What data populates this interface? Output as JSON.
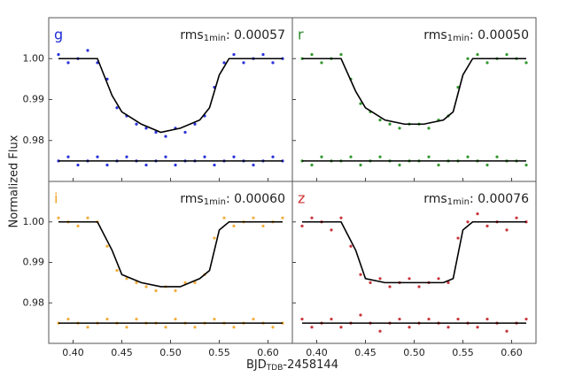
{
  "figure": {
    "ylabel": "Normalized Flux",
    "xlabel": "BJD",
    "xlabel_sub": "TDB",
    "xlabel_rest": "-2458144"
  },
  "chart_data": [
    {
      "type": "scatter",
      "band": "g",
      "band_color": "#1c2bd6",
      "rms_label": "rms",
      "rms_sub": "1min",
      "rms_text": ": 0.00057",
      "show_xtick_labels": false,
      "show_ytick_labels": true,
      "xlim": [
        0.375,
        0.625
      ],
      "ylim": [
        0.97,
        1.01
      ],
      "xticks": [
        {
          "value": 0.4,
          "label": "0.40"
        },
        {
          "value": 0.45,
          "label": "0.45"
        },
        {
          "value": 0.5,
          "label": "0.50"
        },
        {
          "value": 0.55,
          "label": "0.55"
        },
        {
          "value": 0.6,
          "label": "0.60"
        }
      ],
      "yticks": [
        {
          "value": 0.98,
          "label": "0.98"
        },
        {
          "value": 0.99,
          "label": "0.99"
        },
        {
          "value": 1.0,
          "label": "1.00"
        }
      ],
      "x": [
        0.385,
        0.395,
        0.405,
        0.415,
        0.425,
        0.435,
        0.445,
        0.455,
        0.465,
        0.475,
        0.485,
        0.495,
        0.505,
        0.515,
        0.525,
        0.535,
        0.545,
        0.555,
        0.565,
        0.575,
        0.585,
        0.595,
        0.605,
        0.615
      ],
      "series": [
        {
          "color": "#2a32d8",
          "values": [
            1.001,
            0.999,
            1.0,
            1.002,
            0.999,
            0.995,
            0.988,
            0.986,
            0.984,
            0.983,
            0.982,
            0.981,
            0.983,
            0.982,
            0.984,
            0.986,
            0.993,
            0.999,
            1.001,
            0.999,
            1.0,
            1.001,
            0.999,
            1.0
          ]
        },
        {
          "color": "#2a32d8",
          "values": [
            0.975,
            0.976,
            0.974,
            0.975,
            0.976,
            0.974,
            0.975,
            0.976,
            0.975,
            0.974,
            0.975,
            0.976,
            0.974,
            0.975,
            0.975,
            0.976,
            0.974,
            0.975,
            0.976,
            0.975,
            0.974,
            0.975,
            0.976,
            0.975
          ]
        }
      ],
      "model": {
        "color": "#000000",
        "x": [
          0.385,
          0.425,
          0.44,
          0.45,
          0.47,
          0.49,
          0.51,
          0.53,
          0.54,
          0.55,
          0.56,
          0.615
        ],
        "values": [
          1.0,
          1.0,
          0.991,
          0.987,
          0.984,
          0.982,
          0.983,
          0.985,
          0.988,
          0.996,
          1.0,
          1.0
        ]
      },
      "residual_model": {
        "color": "#000000",
        "x": [
          0.385,
          0.615
        ],
        "values": [
          0.975,
          0.975
        ]
      }
    },
    {
      "type": "scatter",
      "band": "r",
      "band_color": "#2a8a2a",
      "rms_label": "rms",
      "rms_sub": "1min",
      "rms_text": ": 0.00050",
      "show_xtick_labels": false,
      "show_ytick_labels": false,
      "xlim": [
        0.375,
        0.625
      ],
      "ylim": [
        0.97,
        1.01
      ],
      "xticks": [
        {
          "value": 0.4,
          "label": "0.40"
        },
        {
          "value": 0.45,
          "label": "0.45"
        },
        {
          "value": 0.5,
          "label": "0.50"
        },
        {
          "value": 0.55,
          "label": "0.55"
        },
        {
          "value": 0.6,
          "label": "0.60"
        }
      ],
      "yticks": [
        {
          "value": 0.98,
          "label": "0.98"
        },
        {
          "value": 0.99,
          "label": "0.99"
        },
        {
          "value": 1.0,
          "label": "1.00"
        }
      ],
      "x": [
        0.385,
        0.395,
        0.405,
        0.415,
        0.425,
        0.435,
        0.445,
        0.455,
        0.465,
        0.475,
        0.485,
        0.495,
        0.505,
        0.515,
        0.525,
        0.535,
        0.545,
        0.555,
        0.565,
        0.575,
        0.585,
        0.595,
        0.605,
        0.615
      ],
      "series": [
        {
          "color": "#33992f",
          "values": [
            1.0,
            1.001,
            0.999,
            1.0,
            1.001,
            0.995,
            0.989,
            0.987,
            0.985,
            0.984,
            0.983,
            0.984,
            0.984,
            0.983,
            0.985,
            0.986,
            0.993,
            1.0,
            1.001,
            0.999,
            1.0,
            1.001,
            1.0,
            0.999
          ]
        },
        {
          "color": "#33992f",
          "values": [
            0.975,
            0.974,
            0.976,
            0.975,
            0.975,
            0.976,
            0.974,
            0.975,
            0.976,
            0.975,
            0.974,
            0.975,
            0.975,
            0.976,
            0.974,
            0.975,
            0.975,
            0.976,
            0.975,
            0.974,
            0.976,
            0.975,
            0.975,
            0.974
          ]
        }
      ],
      "model": {
        "color": "#000000",
        "x": [
          0.385,
          0.425,
          0.44,
          0.45,
          0.47,
          0.49,
          0.51,
          0.53,
          0.54,
          0.55,
          0.56,
          0.615
        ],
        "values": [
          1.0,
          1.0,
          0.992,
          0.988,
          0.985,
          0.984,
          0.984,
          0.985,
          0.987,
          0.996,
          1.0,
          1.0
        ]
      },
      "residual_model": {
        "color": "#000000",
        "x": [
          0.385,
          0.615
        ],
        "values": [
          0.975,
          0.975
        ]
      }
    },
    {
      "type": "scatter",
      "band": "i",
      "band_color": "#f0a020",
      "rms_label": "rms",
      "rms_sub": "1min",
      "rms_text": ": 0.00060",
      "show_xtick_labels": true,
      "show_ytick_labels": true,
      "xlim": [
        0.375,
        0.625
      ],
      "ylim": [
        0.97,
        1.01
      ],
      "xticks": [
        {
          "value": 0.4,
          "label": "0.40"
        },
        {
          "value": 0.45,
          "label": "0.45"
        },
        {
          "value": 0.5,
          "label": "0.50"
        },
        {
          "value": 0.55,
          "label": "0.55"
        },
        {
          "value": 0.6,
          "label": "0.60"
        }
      ],
      "yticks": [
        {
          "value": 0.98,
          "label": "0.98"
        },
        {
          "value": 0.99,
          "label": "0.99"
        },
        {
          "value": 1.0,
          "label": "1.00"
        }
      ],
      "x": [
        0.385,
        0.395,
        0.405,
        0.415,
        0.425,
        0.435,
        0.445,
        0.455,
        0.465,
        0.475,
        0.485,
        0.495,
        0.505,
        0.515,
        0.525,
        0.535,
        0.545,
        0.555,
        0.565,
        0.575,
        0.585,
        0.595,
        0.605,
        0.615
      ],
      "series": [
        {
          "color": "#f2ad3a",
          "values": [
            1.001,
            1.0,
            0.999,
            1.001,
            1.0,
            0.994,
            0.988,
            0.986,
            0.985,
            0.984,
            0.983,
            0.984,
            0.983,
            0.985,
            0.985,
            0.987,
            0.996,
            1.001,
            0.999,
            1.0,
            1.001,
            0.999,
            1.0,
            1.001
          ]
        },
        {
          "color": "#f2ad3a",
          "values": [
            0.975,
            0.976,
            0.975,
            0.974,
            0.975,
            0.976,
            0.975,
            0.974,
            0.976,
            0.975,
            0.975,
            0.974,
            0.976,
            0.975,
            0.974,
            0.975,
            0.976,
            0.975,
            0.974,
            0.975,
            0.976,
            0.975,
            0.974,
            0.975
          ]
        }
      ],
      "model": {
        "color": "#000000",
        "x": [
          0.385,
          0.425,
          0.44,
          0.45,
          0.47,
          0.49,
          0.51,
          0.53,
          0.54,
          0.55,
          0.56,
          0.615
        ],
        "values": [
          1.0,
          1.0,
          0.993,
          0.987,
          0.985,
          0.984,
          0.984,
          0.986,
          0.988,
          0.998,
          1.0,
          1.0
        ]
      },
      "residual_model": {
        "color": "#000000",
        "x": [
          0.385,
          0.615
        ],
        "values": [
          0.975,
          0.975
        ]
      }
    },
    {
      "type": "scatter",
      "band": "z",
      "band_color": "#d03030",
      "rms_label": "rms",
      "rms_sub": "1min",
      "rms_text": ": 0.00076",
      "show_xtick_labels": true,
      "show_ytick_labels": false,
      "xlim": [
        0.375,
        0.625
      ],
      "ylim": [
        0.97,
        1.01
      ],
      "xticks": [
        {
          "value": 0.4,
          "label": "0.40"
        },
        {
          "value": 0.45,
          "label": "0.45"
        },
        {
          "value": 0.5,
          "label": "0.50"
        },
        {
          "value": 0.55,
          "label": "0.55"
        },
        {
          "value": 0.6,
          "label": "0.60"
        }
      ],
      "yticks": [
        {
          "value": 0.98,
          "label": "0.98"
        },
        {
          "value": 0.99,
          "label": "0.99"
        },
        {
          "value": 1.0,
          "label": "1.00"
        }
      ],
      "x": [
        0.385,
        0.395,
        0.405,
        0.415,
        0.425,
        0.435,
        0.445,
        0.455,
        0.465,
        0.475,
        0.485,
        0.495,
        0.505,
        0.515,
        0.525,
        0.535,
        0.545,
        0.555,
        0.565,
        0.575,
        0.585,
        0.595,
        0.605,
        0.615
      ],
      "series": [
        {
          "color": "#c8353a",
          "values": [
            0.999,
            1.001,
            1.0,
            0.998,
            1.001,
            0.994,
            0.987,
            0.985,
            0.986,
            0.984,
            0.985,
            0.986,
            0.984,
            0.985,
            0.986,
            0.985,
            0.996,
            1.0,
            1.002,
            0.999,
            1.0,
            0.998,
            1.001,
            1.0
          ]
        },
        {
          "color": "#c8353a",
          "values": [
            0.976,
            0.974,
            0.975,
            0.976,
            0.974,
            0.975,
            0.977,
            0.975,
            0.973,
            0.975,
            0.976,
            0.974,
            0.975,
            0.976,
            0.975,
            0.974,
            0.976,
            0.975,
            0.974,
            0.976,
            0.975,
            0.973,
            0.975,
            0.976
          ]
        }
      ],
      "model": {
        "color": "#000000",
        "x": [
          0.385,
          0.425,
          0.44,
          0.45,
          0.47,
          0.49,
          0.51,
          0.53,
          0.54,
          0.55,
          0.56,
          0.615
        ],
        "values": [
          1.0,
          1.0,
          0.993,
          0.986,
          0.985,
          0.985,
          0.985,
          0.985,
          0.986,
          0.998,
          1.0,
          1.0
        ]
      },
      "residual_model": {
        "color": "#000000",
        "x": [
          0.385,
          0.615
        ],
        "values": [
          0.975,
          0.975
        ]
      }
    }
  ]
}
